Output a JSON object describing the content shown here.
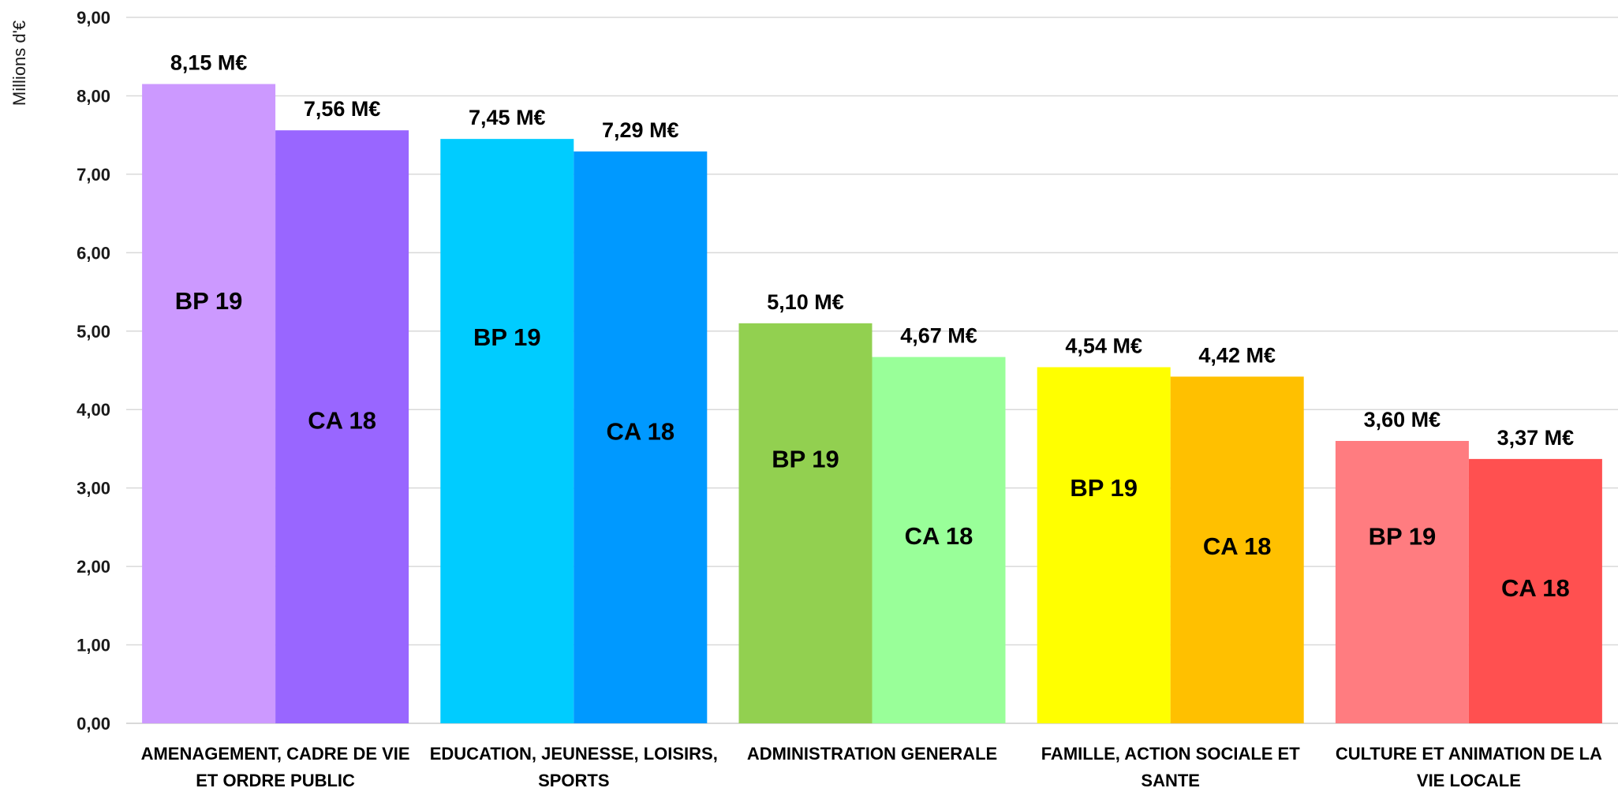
{
  "chart_data": {
    "type": "bar",
    "title": "",
    "xlabel": "",
    "ylabel": "Millions d'€",
    "ylim": [
      0,
      9
    ],
    "yticks": [
      "0,00",
      "1,00",
      "2,00",
      "3,00",
      "4,00",
      "5,00",
      "6,00",
      "7,00",
      "8,00",
      "9,00"
    ],
    "grid": true,
    "categories": [
      [
        "AMENAGEMENT, CADRE DE VIE",
        "ET ORDRE PUBLIC"
      ],
      [
        "EDUCATION, JEUNESSE, LOISIRS,",
        "SPORTS"
      ],
      [
        "ADMINISTRATION GENERALE"
      ],
      [
        "FAMILLE, ACTION SOCIALE ET",
        "SANTE"
      ],
      [
        "CULTURE ET ANIMATION DE LA",
        "VIE LOCALE"
      ]
    ],
    "series": [
      {
        "inbar_label": "BP 19",
        "values": [
          8.15,
          7.45,
          5.1,
          4.54,
          3.6
        ],
        "value_labels": [
          "8,15 M€",
          "7,45 M€",
          "5,10 M€",
          "4,54 M€",
          "3,60 M€"
        ],
        "colors": [
          "#cc99ff",
          "#00ccff",
          "#92d050",
          "#ffff00",
          "#ff7c80"
        ]
      },
      {
        "inbar_label": "CA 18",
        "values": [
          7.56,
          7.29,
          4.67,
          4.42,
          3.37
        ],
        "value_labels": [
          "7,56 M€",
          "7,29 M€",
          "4,67 M€",
          "4,42 M€",
          "3,37 M€"
        ],
        "colors": [
          "#9966ff",
          "#0099ff",
          "#99ff99",
          "#ffc000",
          "#ff5050"
        ]
      }
    ]
  }
}
